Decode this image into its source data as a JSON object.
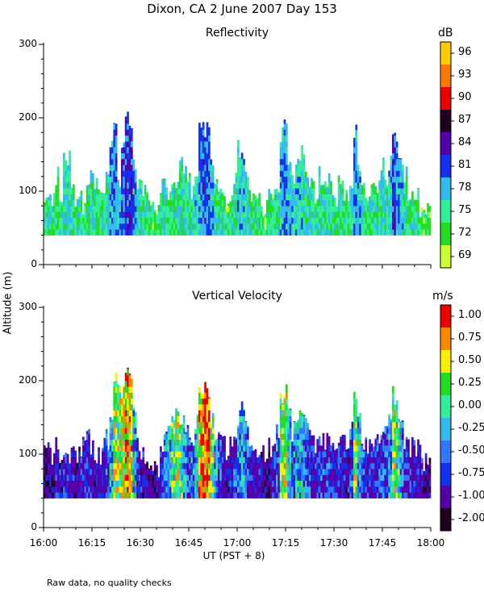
{
  "title": "Dixon, CA  2 June 2007  Day 153",
  "footnote": "Raw data, no quality checks",
  "y_axis_label": "Altitude (m)",
  "x_axis_label": "UT  (PST + 8)",
  "x_ticks": [
    "16:00",
    "16:15",
    "16:30",
    "16:45",
    "17:00",
    "17:15",
    "17:30",
    "17:45",
    "18:00"
  ],
  "chart_data": [
    {
      "type": "heatmap",
      "title": "Reflectivity",
      "colorbar_unit": "dB",
      "x_range_minutes": [
        0,
        120
      ],
      "x_start": "16:00",
      "x_end": "18:00",
      "ylim": [
        0,
        300
      ],
      "y_ticks": [
        "0",
        "100",
        "200",
        "300"
      ],
      "base_altitude": 40,
      "colorbar": [
        {
          "label": "69",
          "color": "#ccff33"
        },
        {
          "label": "72",
          "color": "#22dd22"
        },
        {
          "label": "75",
          "color": "#33ee99"
        },
        {
          "label": "78",
          "color": "#33bbee"
        },
        {
          "label": "81",
          "color": "#1133ee"
        },
        {
          "label": "84",
          "color": "#5500aa"
        },
        {
          "label": "87",
          "color": "#220022"
        },
        {
          "label": "90",
          "color": "#ee0000"
        },
        {
          "label": "93",
          "color": "#ff7700"
        },
        {
          "label": "96",
          "color": "#ffcc00"
        }
      ],
      "tops_m": [
        80,
        100,
        90,
        120,
        85,
        140,
        150,
        110,
        90,
        100,
        80,
        95,
        120,
        110,
        90,
        100,
        120,
        160,
        200,
        120,
        160,
        210,
        200,
        140,
        110,
        100,
        95,
        80,
        80,
        80,
        110,
        120,
        100,
        110,
        110,
        140,
        130,
        120,
        100,
        130,
        200,
        185,
        190,
        140,
        120,
        110,
        95,
        80,
        95,
        120,
        160,
        150,
        120,
        100,
        90,
        100,
        80,
        75,
        90,
        100,
        110,
        180,
        190,
        130,
        120,
        140,
        150,
        140,
        120,
        110,
        95,
        120,
        110,
        120,
        100,
        90,
        110,
        100,
        95,
        110,
        180,
        130,
        100,
        90,
        95,
        120,
        110,
        140,
        120,
        140,
        190,
        160,
        130,
        120,
        100,
        90,
        100,
        80,
        70,
        80
      ],
      "mean_dB": [
        74,
        75,
        74,
        74,
        75,
        76,
        76,
        75,
        74,
        75,
        74,
        74,
        75,
        75,
        74,
        75,
        76,
        79,
        80,
        77,
        80,
        82,
        82,
        79,
        76,
        74,
        74,
        74,
        73,
        73,
        75,
        76,
        75,
        75,
        75,
        76,
        76,
        75,
        75,
        77,
        79,
        80,
        80,
        78,
        76,
        75,
        74,
        73,
        74,
        75,
        77,
        77,
        76,
        75,
        74,
        75,
        74,
        73,
        74,
        75,
        75,
        78,
        79,
        77,
        77,
        77,
        77,
        76,
        76,
        75,
        74,
        76,
        76,
        76,
        75,
        74,
        75,
        75,
        74,
        76,
        79,
        77,
        75,
        74,
        75,
        75,
        75,
        76,
        76,
        77,
        81,
        79,
        77,
        75,
        74,
        74,
        74,
        73,
        72,
        73
      ]
    },
    {
      "type": "heatmap",
      "title": "Vertical Velocity",
      "colorbar_unit": "m/s",
      "x_range_minutes": [
        0,
        120
      ],
      "x_start": "16:00",
      "x_end": "18:00",
      "ylim": [
        0,
        300
      ],
      "y_ticks": [
        "0",
        "100",
        "200",
        "300"
      ],
      "base_altitude": 40,
      "colorbar": [
        {
          "label": "-2.00",
          "color": "#220022"
        },
        {
          "label": "-1.00",
          "color": "#5500aa"
        },
        {
          "label": "-0.75",
          "color": "#1133ee"
        },
        {
          "label": "-0.50",
          "color": "#3377ff"
        },
        {
          "label": "-0.25",
          "color": "#33bbee"
        },
        {
          "label": "0.00",
          "color": "#33ee99"
        },
        {
          "label": "0.25",
          "color": "#22dd22"
        },
        {
          "label": "0.50",
          "color": "#ffee00"
        },
        {
          "label": "0.75",
          "color": "#ff8800"
        },
        {
          "label": "1.00",
          "color": "#ee0000"
        }
      ],
      "tops_m": [
        100,
        110,
        90,
        120,
        100,
        110,
        100,
        100,
        90,
        100,
        110,
        120,
        110,
        100,
        100,
        110,
        120,
        140,
        200,
        190,
        190,
        210,
        200,
        160,
        120,
        100,
        90,
        80,
        80,
        80,
        110,
        130,
        140,
        160,
        150,
        150,
        140,
        130,
        120,
        140,
        180,
        185,
        190,
        150,
        130,
        120,
        110,
        100,
        110,
        130,
        150,
        160,
        130,
        110,
        100,
        110,
        100,
        95,
        110,
        120,
        130,
        180,
        190,
        150,
        130,
        140,
        150,
        140,
        130,
        120,
        110,
        120,
        120,
        130,
        120,
        110,
        120,
        115,
        110,
        130,
        180,
        150,
        120,
        110,
        115,
        120,
        120,
        140,
        130,
        150,
        180,
        160,
        140,
        120,
        110,
        110,
        110,
        100,
        90,
        90
      ],
      "mean_mps": [
        -1.2,
        -1.1,
        -1.3,
        -1.0,
        -1.1,
        -0.9,
        -1.0,
        -1.1,
        -1.2,
        -1.1,
        -1.0,
        -0.9,
        -1.0,
        -1.1,
        -1.1,
        -1.0,
        -0.8,
        -0.3,
        0.3,
        0.2,
        0.4,
        0.6,
        0.5,
        -0.2,
        -0.8,
        -1.1,
        -1.2,
        -1.3,
        -1.2,
        -1.1,
        -0.9,
        -0.6,
        -0.3,
        0.1,
        0.3,
        0.0,
        -0.4,
        -0.7,
        -0.5,
        -0.2,
        0.6,
        0.9,
        0.8,
        0.2,
        -0.4,
        -0.8,
        -1.0,
        -1.2,
        -1.0,
        -0.8,
        -0.5,
        -0.3,
        -0.6,
        -0.9,
        -1.1,
        -1.0,
        -1.2,
        -1.3,
        -1.1,
        -0.9,
        -0.6,
        0.2,
        0.4,
        -0.2,
        -0.5,
        -0.3,
        -0.2,
        -0.5,
        -0.7,
        -0.9,
        -1.0,
        -0.8,
        -0.8,
        -0.7,
        -0.9,
        -1.0,
        -0.9,
        -1.0,
        -1.1,
        -0.7,
        0.3,
        -0.2,
        -0.7,
        -0.9,
        -0.9,
        -0.8,
        -0.8,
        -0.6,
        -0.7,
        -0.4,
        0.2,
        0.0,
        -0.5,
        -0.8,
        -0.9,
        -1.0,
        -1.0,
        -1.1,
        -1.2,
        -1.2
      ]
    }
  ]
}
